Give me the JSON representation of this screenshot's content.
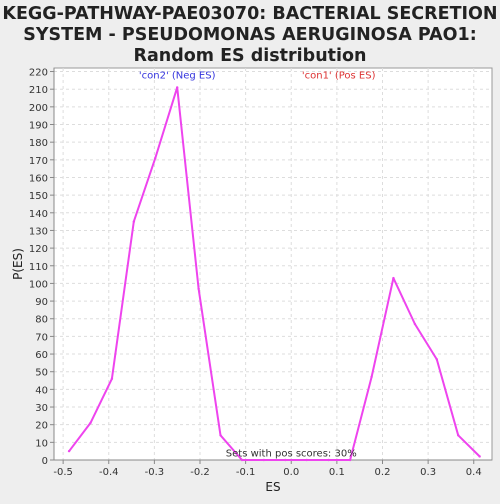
{
  "chart_data": {
    "type": "line",
    "title_lines": [
      "KEGG-PATHWAY-PAE03070: BACTERIAL SECRETION",
      "SYSTEM - PSEUDOMONAS AERUGINOSA PAO1:",
      "Random ES distribution"
    ],
    "xlabel": "ES",
    "ylabel": "P(ES)",
    "xlim": [
      -0.52,
      0.44
    ],
    "ylim": [
      0,
      222
    ],
    "x_ticks": [
      -0.5,
      -0.4,
      -0.3,
      -0.2,
      -0.1,
      0.0,
      0.1,
      0.2,
      0.3,
      0.4
    ],
    "x_tick_labels": [
      "-0.5",
      "-0.4",
      "-0.3",
      "-0.2",
      "-0.1",
      "0.0",
      "0.1",
      "0.2",
      "0.3",
      "0.4"
    ],
    "y_ticks": [
      0,
      10,
      20,
      30,
      40,
      50,
      60,
      70,
      80,
      90,
      100,
      110,
      120,
      130,
      140,
      150,
      160,
      170,
      180,
      190,
      200,
      210,
      220
    ],
    "grid": true,
    "series": [
      {
        "color": "#ee44ee",
        "x": [
          -0.487,
          -0.44,
          -0.393,
          -0.345,
          -0.298,
          -0.25,
          -0.203,
          -0.155,
          -0.108,
          -0.06,
          -0.013,
          0.034,
          0.082,
          0.129,
          0.176,
          0.224,
          0.271,
          0.319,
          0.366,
          0.413
        ],
        "y": [
          5,
          21,
          46,
          135,
          171,
          211,
          97,
          14,
          0,
          0,
          0,
          0,
          0,
          0,
          47,
          103,
          77,
          57,
          14,
          2
        ]
      }
    ],
    "annotations": [
      {
        "text": "'con2' (Neg ES)",
        "color": "#3333dd",
        "x": -0.25,
        "y": 216
      },
      {
        "text": "'con1' (Pos ES)",
        "color": "#dd3333",
        "x": 0.104,
        "y": 216
      },
      {
        "text": "Sets with pos scores: 30%",
        "color": "#333333",
        "x": 0.0,
        "y": 2
      }
    ]
  }
}
